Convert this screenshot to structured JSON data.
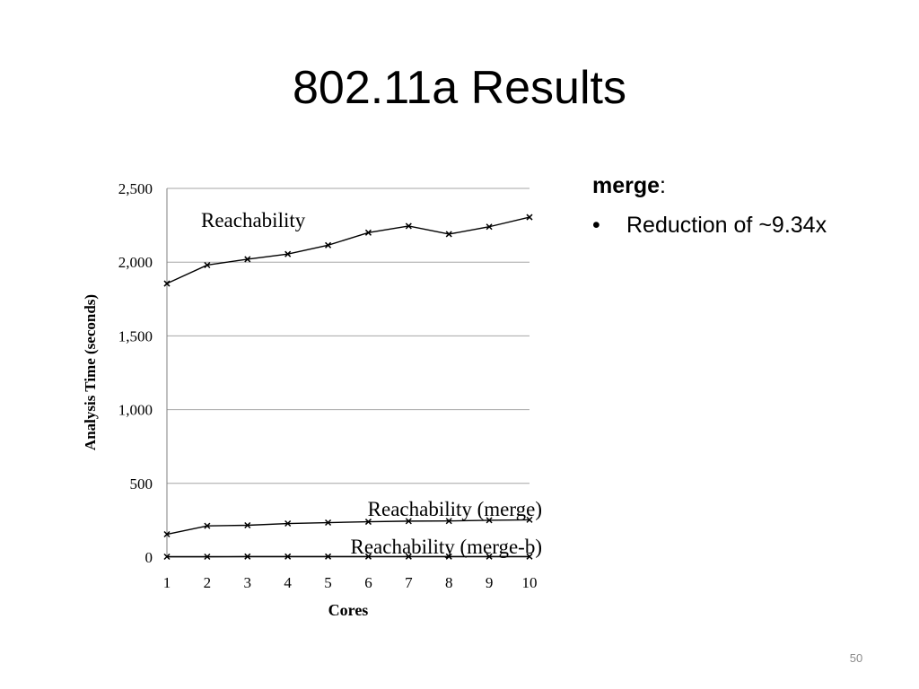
{
  "slide": {
    "title": "802.11a Results",
    "number": "50"
  },
  "bullets": {
    "heading": "merge",
    "heading_suffix": ":",
    "items": [
      {
        "marker": "•",
        "text": "Reduction of ~9.34x"
      }
    ]
  },
  "chart_data": {
    "type": "line",
    "xlabel": "Cores",
    "ylabel": "Analysis Time (seconds)",
    "x": [
      1,
      2,
      3,
      4,
      5,
      6,
      7,
      8,
      9,
      10
    ],
    "x_tick_labels": [
      "1",
      "2",
      "3",
      "4",
      "5",
      "6",
      "7",
      "8",
      "9",
      "10"
    ],
    "ylim": [
      0,
      2500
    ],
    "y_ticks": [
      0,
      500,
      1000,
      1500,
      2000,
      2500
    ],
    "y_tick_labels": [
      "0",
      "500",
      "1,000",
      "1,500",
      "2,000",
      "2,500"
    ],
    "grid": "horizontal",
    "marker": "x",
    "line_color": "#000000",
    "grid_color": "#a6a6a6",
    "series": [
      {
        "name": "Reachability",
        "values": [
          1855,
          1980,
          2020,
          2055,
          2115,
          2200,
          2245,
          2190,
          2240,
          2305
        ]
      },
      {
        "name": "Reachability (merge)",
        "values": [
          155,
          212,
          216,
          228,
          234,
          240,
          244,
          245,
          250,
          253
        ]
      },
      {
        "name": "Reachability (merge-b)",
        "values": [
          3,
          3,
          4,
          4,
          4,
          4,
          4,
          4,
          4,
          4
        ]
      }
    ]
  }
}
